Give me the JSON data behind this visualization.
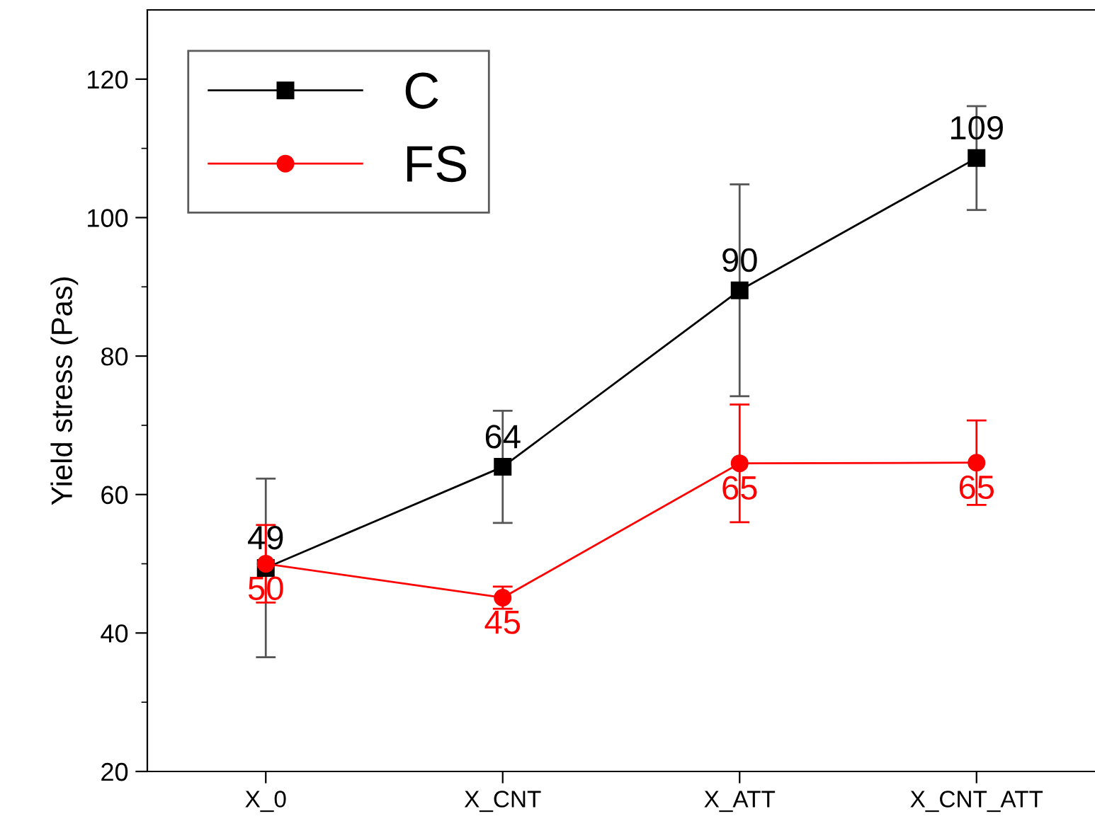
{
  "chart_data": {
    "type": "line",
    "ylabel": "Yield stress (Pas)",
    "categories": [
      "X_0",
      "X_CNT",
      "X_ATT",
      "X_CNT_ATT"
    ],
    "series": [
      {
        "name": "C",
        "color": "#000000",
        "marker": "square",
        "values": [
          49.4,
          64.0,
          89.5,
          108.6
        ],
        "errors": [
          12.9,
          8.1,
          15.3,
          7.5
        ],
        "value_labels": [
          "49",
          "64",
          "90",
          "109"
        ]
      },
      {
        "name": "FS",
        "color": "#ff0000",
        "marker": "circle",
        "values": [
          50.0,
          45.1,
          64.5,
          64.6
        ],
        "errors": [
          5.6,
          1.6,
          8.5,
          6.1
        ],
        "value_labels": [
          "50",
          "45",
          "65",
          "65"
        ]
      }
    ],
    "ylim": [
      20,
      130
    ],
    "yticks": [
      20,
      40,
      60,
      80,
      100,
      120
    ],
    "grid": false,
    "legend": "top left",
    "line_style": "solid"
  }
}
